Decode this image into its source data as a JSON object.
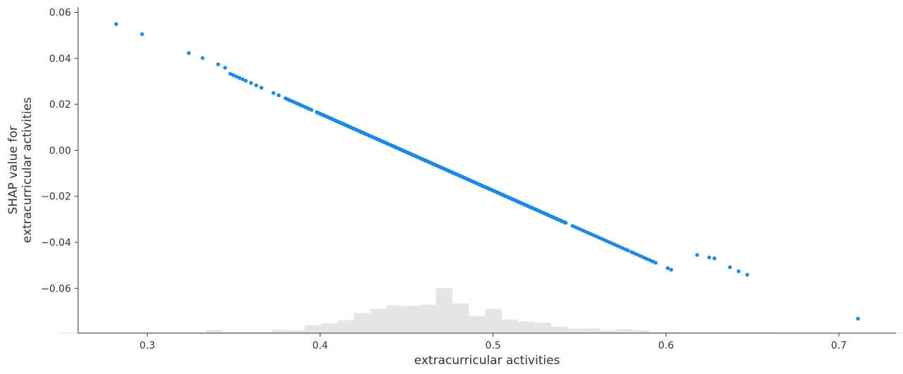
{
  "chart_data": {
    "type": "scatter",
    "title": "",
    "xlabel": "extracurricular activities",
    "ylabel_lines": [
      "SHAP value for",
      "extracurricular activities"
    ],
    "xlim": [
      0.26,
      0.733
    ],
    "ylim": [
      -0.0795,
      0.0623
    ],
    "x_ticks": [
      0.3,
      0.4,
      0.5,
      0.6,
      0.7
    ],
    "x_tick_labels": [
      "0.3",
      "0.4",
      "0.5",
      "0.6",
      "0.7"
    ],
    "y_ticks": [
      -0.06,
      -0.04,
      -0.02,
      0.0,
      0.02,
      0.04,
      0.06
    ],
    "y_tick_labels": [
      "−0.06",
      "−0.04",
      "−0.02",
      "0.00",
      "0.02",
      "0.04",
      "0.06"
    ],
    "grid": false,
    "point_color": "#1e88e5",
    "histogram_color": "#e5e5e5",
    "scatter": {
      "relation": {
        "slope": -0.334,
        "intercept": 0.1495
      },
      "isolated_x": [
        0.282,
        0.297,
        0.324,
        0.332,
        0.341,
        0.345,
        0.618,
        0.625,
        0.628,
        0.637,
        0.642,
        0.647,
        0.711
      ],
      "isolated_y": [
        0.0549,
        0.0505,
        0.0423,
        0.0401,
        0.0374,
        0.0359,
        -0.0455,
        -0.0466,
        -0.047,
        -0.0508,
        -0.0526,
        -0.0541,
        -0.0732
      ],
      "dense_segments": [
        {
          "x_range": [
            0.348,
            0.357
          ],
          "n": 6
        },
        {
          "x_range": [
            0.36,
            0.366
          ],
          "n": 3
        },
        {
          "x_range": [
            0.373,
            0.376
          ],
          "n": 2
        },
        {
          "x_range": [
            0.38,
            0.395
          ],
          "n": 14
        },
        {
          "x_range": [
            0.398,
            0.542
          ],
          "n": 220
        },
        {
          "x_range": [
            0.546,
            0.578
          ],
          "n": 22
        },
        {
          "x_range": [
            0.58,
            0.594
          ],
          "n": 10
        },
        {
          "x_range": [
            0.601,
            0.603
          ],
          "n": 2
        }
      ]
    },
    "histogram": {
      "bin_start": 0.22,
      "bin_width": 0.0095,
      "counts": [
        0,
        0,
        0,
        0.02,
        0.02,
        0.02,
        0.02,
        0.03,
        0.03,
        0.03,
        0.02,
        0.02,
        0.12,
        0.05,
        0.05,
        0.05,
        0.13,
        0.11,
        0.3,
        0.38,
        0.5,
        0.77,
        0.94,
        1.07,
        1.05,
        1.09,
        1.73,
        1.14,
        0.66,
        0.93,
        0.52,
        0.45,
        0.4,
        0.25,
        0.17,
        0.18,
        0.1,
        0.15,
        0.11,
        0.04,
        0.04,
        0.02,
        0.02,
        0.02,
        0.03,
        0.02,
        0.02,
        0.0,
        0.0,
        0.0,
        0.0,
        0.0,
        0.0,
        0.0,
        0.02,
        0.0,
        0.0,
        0.0,
        0.0
      ]
    }
  }
}
